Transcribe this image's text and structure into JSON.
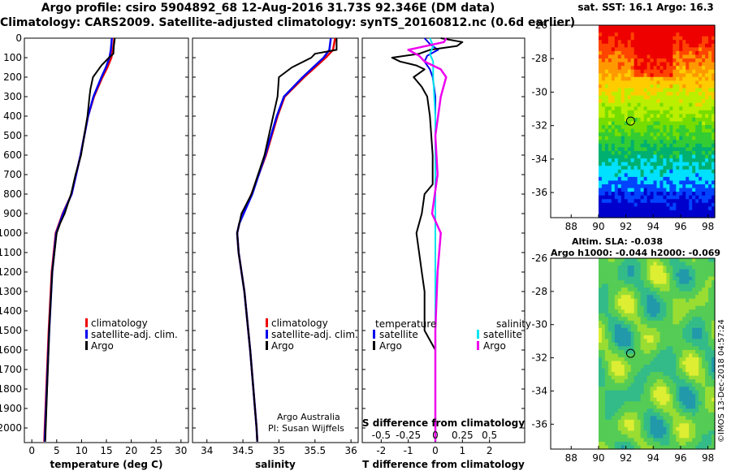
{
  "header": {
    "title_line1": "Argo profile: csiro 5904892_68 12-Aug-2016 31.73S 92.346E (DM data)",
    "title_line2": "Climatology: CARS2009. Satellite-adjusted climatology: synTS_20160812.nc (0.6d earlier)"
  },
  "maps": {
    "sst_title": "sat. SST: 16.1 Argo: 16.3",
    "sla_title_line1": "Altim. SLA: -0.038",
    "sla_title_line2": "Argo h1000: -0.044 h2000: -0.069",
    "lat_ticks": [
      "-26",
      "-28",
      "-30",
      "-32",
      "-34",
      "-36"
    ],
    "lon_ticks": [
      "88",
      "90",
      "92",
      "94",
      "96",
      "98"
    ],
    "float_lat": -31.73,
    "float_lon": 92.346
  },
  "credits": {
    "attribution_line1": "Argo Australia",
    "attribution_line2": "PI: Susan Wijffels",
    "imos_stamp": "©IMOS 13-Dec-2018 04:57:24"
  },
  "colors": {
    "climatology": "#ee0000",
    "satellite": "#0000ee",
    "argo": "#000000",
    "satellite_s": "#00e5ee",
    "argo_s": "#ee00ee"
  },
  "chart_data": [
    {
      "type": "line",
      "xlabel": "temperature (deg C)",
      "ylabel": "",
      "xlim": [
        -1.5,
        31.5
      ],
      "ylim": [
        2075,
        0
      ],
      "x_ticks": [
        "0",
        "5",
        "10",
        "15",
        "20",
        "25",
        "30"
      ],
      "y_ticks": [
        "0",
        "100",
        "200",
        "300",
        "400",
        "500",
        "600",
        "700",
        "800",
        "900",
        "1000",
        "1100",
        "1200",
        "1300",
        "1400",
        "1500",
        "1600",
        "1700",
        "1800",
        "1900",
        "2000"
      ],
      "legend": [
        "climatology",
        "satellite-adj. clim.",
        "Argo"
      ],
      "series": [
        {
          "name": "climatology",
          "depth": [
            0,
            60,
            100,
            150,
            200,
            300,
            400,
            600,
            800,
            900,
            1000,
            1200,
            1500,
            2000,
            2070
          ],
          "values": [
            16.6,
            16.3,
            16.0,
            15.2,
            14.2,
            12.5,
            11.3,
            9.8,
            8.0,
            6.2,
            4.8,
            4.0,
            3.4,
            2.6,
            2.5
          ]
        },
        {
          "name": "satellite-adj. clim.",
          "depth": [
            0,
            60,
            100,
            150,
            200,
            300,
            400,
            600,
            800,
            900,
            1000,
            1200,
            1500,
            2000,
            2070
          ],
          "values": [
            16.1,
            15.9,
            15.6,
            14.9,
            14.0,
            12.4,
            11.3,
            9.8,
            8.0,
            6.3,
            4.9,
            4.1,
            3.5,
            2.7,
            2.6
          ]
        },
        {
          "name": "Argo",
          "depth": [
            0,
            40,
            80,
            100,
            140,
            200,
            260,
            300,
            400,
            600,
            700,
            800,
            900,
            950,
            1000,
            1200,
            1500,
            2000,
            2070
          ],
          "values": [
            16.7,
            16.5,
            16.4,
            15.5,
            14.0,
            12.3,
            11.8,
            11.6,
            11.2,
            9.9,
            8.8,
            7.9,
            6.6,
            5.7,
            5.0,
            4.1,
            3.5,
            2.8,
            2.7
          ]
        }
      ]
    },
    {
      "type": "line",
      "xlabel": "salinity",
      "ylabel": "",
      "xlim": [
        33.8,
        36.1
      ],
      "ylim": [
        2075,
        0
      ],
      "x_ticks": [
        "34",
        "34.5",
        "35",
        "35.5",
        "36"
      ],
      "legend": [
        "climatology",
        "satellite-adj. clim.",
        "Argo"
      ],
      "series": [
        {
          "name": "climatology",
          "depth": [
            0,
            60,
            100,
            200,
            300,
            400,
            600,
            800,
            900,
            950,
            1000,
            1100,
            1300,
            1600,
            2000,
            2070
          ],
          "values": [
            35.78,
            35.75,
            35.65,
            35.35,
            35.08,
            34.98,
            34.82,
            34.62,
            34.5,
            34.45,
            34.42,
            34.44,
            34.52,
            34.6,
            34.69,
            34.7
          ]
        },
        {
          "name": "satellite-adj. clim.",
          "depth": [
            0,
            60,
            100,
            200,
            300,
            400,
            600,
            800,
            900,
            950,
            1000,
            1100,
            1300,
            1600,
            2000,
            2070
          ],
          "values": [
            35.72,
            35.7,
            35.62,
            35.33,
            35.07,
            34.97,
            34.81,
            34.63,
            34.51,
            34.45,
            34.42,
            34.44,
            34.52,
            34.6,
            34.69,
            34.7
          ]
        },
        {
          "name": "Argo",
          "depth": [
            0,
            60,
            80,
            100,
            150,
            200,
            300,
            400,
            600,
            800,
            900,
            1000,
            1100,
            1300,
            1600,
            2000,
            2070
          ],
          "values": [
            35.8,
            35.8,
            35.5,
            35.45,
            35.18,
            35.0,
            34.98,
            34.92,
            34.8,
            34.62,
            34.48,
            34.42,
            34.44,
            34.52,
            34.6,
            34.69,
            34.7
          ]
        }
      ]
    },
    {
      "type": "line",
      "xlabel": "T difference from climatology",
      "xlabel_top": "S difference from climatology",
      "xlim": [
        -2.7,
        3.3
      ],
      "ylim": [
        2075,
        0
      ],
      "x_ticks": [
        "-2",
        "-1",
        "0",
        "1",
        "2"
      ],
      "x_ticks_s": [
        "-0.5",
        "-0.25",
        "0",
        "0.25",
        "0.5"
      ],
      "legend_temperature_title": "temperature",
      "legend_salinity_title": "salinity",
      "legend_temperature": [
        "satellite",
        "Argo"
      ],
      "legend_salinity": [
        "satellite",
        "Argo"
      ],
      "series": [
        {
          "name": "temperature satellite",
          "depth": [
            0,
            30,
            60,
            90,
            120,
            160,
            200,
            300,
            500,
            1000,
            1500,
            2000,
            2070
          ],
          "values": [
            -0.4,
            -0.2,
            0.1,
            -0.3,
            -0.4,
            -0.2,
            -0.1,
            0.0,
            0.0,
            0.0,
            0.0,
            0.0,
            0.0
          ]
        },
        {
          "name": "temperature Argo",
          "depth": [
            0,
            20,
            40,
            60,
            80,
            100,
            120,
            140,
            160,
            200,
            250,
            300,
            400,
            600,
            750,
            800,
            900,
            1000,
            1100,
            1200,
            1300,
            1500,
            1600,
            2070
          ],
          "values": [
            0.2,
            1.0,
            0.8,
            -0.2,
            -0.6,
            -1.6,
            -1.3,
            -0.7,
            -0.4,
            -0.8,
            -0.5,
            -0.3,
            -0.2,
            -0.1,
            -0.1,
            -0.4,
            -0.5,
            -0.7,
            -0.6,
            -0.5,
            -0.4,
            -0.4,
            0.0,
            0.0
          ]
        },
        {
          "name": "salinity satellite",
          "depth": [
            0,
            40,
            80,
            120,
            200,
            400,
            1000,
            2070
          ],
          "values": [
            -0.05,
            -0.02,
            -0.05,
            -0.02,
            -0.02,
            0.0,
            0.0,
            0.0
          ]
        },
        {
          "name": "salinity Argo",
          "depth": [
            0,
            20,
            60,
            90,
            120,
            160,
            200,
            300,
            500,
            700,
            900,
            1000,
            1200,
            1500,
            2070
          ],
          "values": [
            0.1,
            0.08,
            -0.25,
            -0.15,
            -0.1,
            0.05,
            0.1,
            0.05,
            0.0,
            0.02,
            -0.03,
            0.05,
            0.02,
            0.0,
            0.0
          ]
        }
      ]
    }
  ]
}
